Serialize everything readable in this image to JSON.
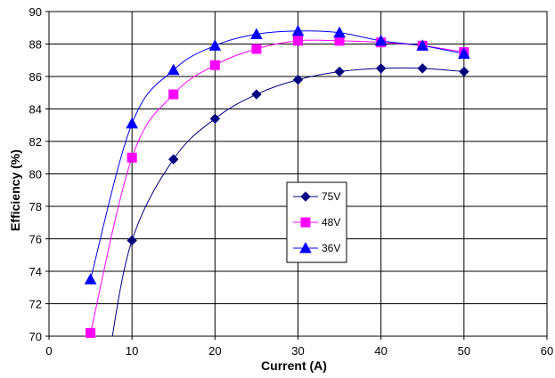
{
  "chart_data": {
    "type": "line",
    "xlabel": "Current (A)",
    "ylabel": "Efficiency (%)",
    "xlim": [
      0,
      60
    ],
    "ylim": [
      70,
      90
    ],
    "x_ticks": [
      0,
      10,
      20,
      30,
      40,
      50,
      60
    ],
    "y_ticks": [
      70,
      72,
      74,
      76,
      78,
      80,
      82,
      84,
      86,
      88,
      90
    ],
    "grid": true,
    "legend_position": "center-right",
    "series": [
      {
        "name": "75V",
        "color": "#000080",
        "marker": "diamond",
        "x": [
          10,
          15,
          20,
          25,
          30,
          35,
          40,
          45,
          50
        ],
        "y": [
          75.9,
          80.9,
          83.4,
          84.9,
          85.8,
          86.3,
          86.5,
          86.5,
          86.3
        ]
      },
      {
        "name": "48V",
        "color": "#FF00FF",
        "marker": "square",
        "x": [
          5,
          10,
          15,
          20,
          25,
          30,
          35,
          40,
          45,
          50
        ],
        "y": [
          70.2,
          81.0,
          84.9,
          86.7,
          87.7,
          88.2,
          88.2,
          88.1,
          87.9,
          87.5
        ]
      },
      {
        "name": "36V",
        "color": "#0000FF",
        "marker": "triangle",
        "x": [
          5,
          10,
          15,
          20,
          25,
          30,
          35,
          40,
          45,
          50
        ],
        "y": [
          73.5,
          83.1,
          86.4,
          87.9,
          88.6,
          88.8,
          88.7,
          88.2,
          87.9,
          87.4
        ]
      }
    ]
  }
}
